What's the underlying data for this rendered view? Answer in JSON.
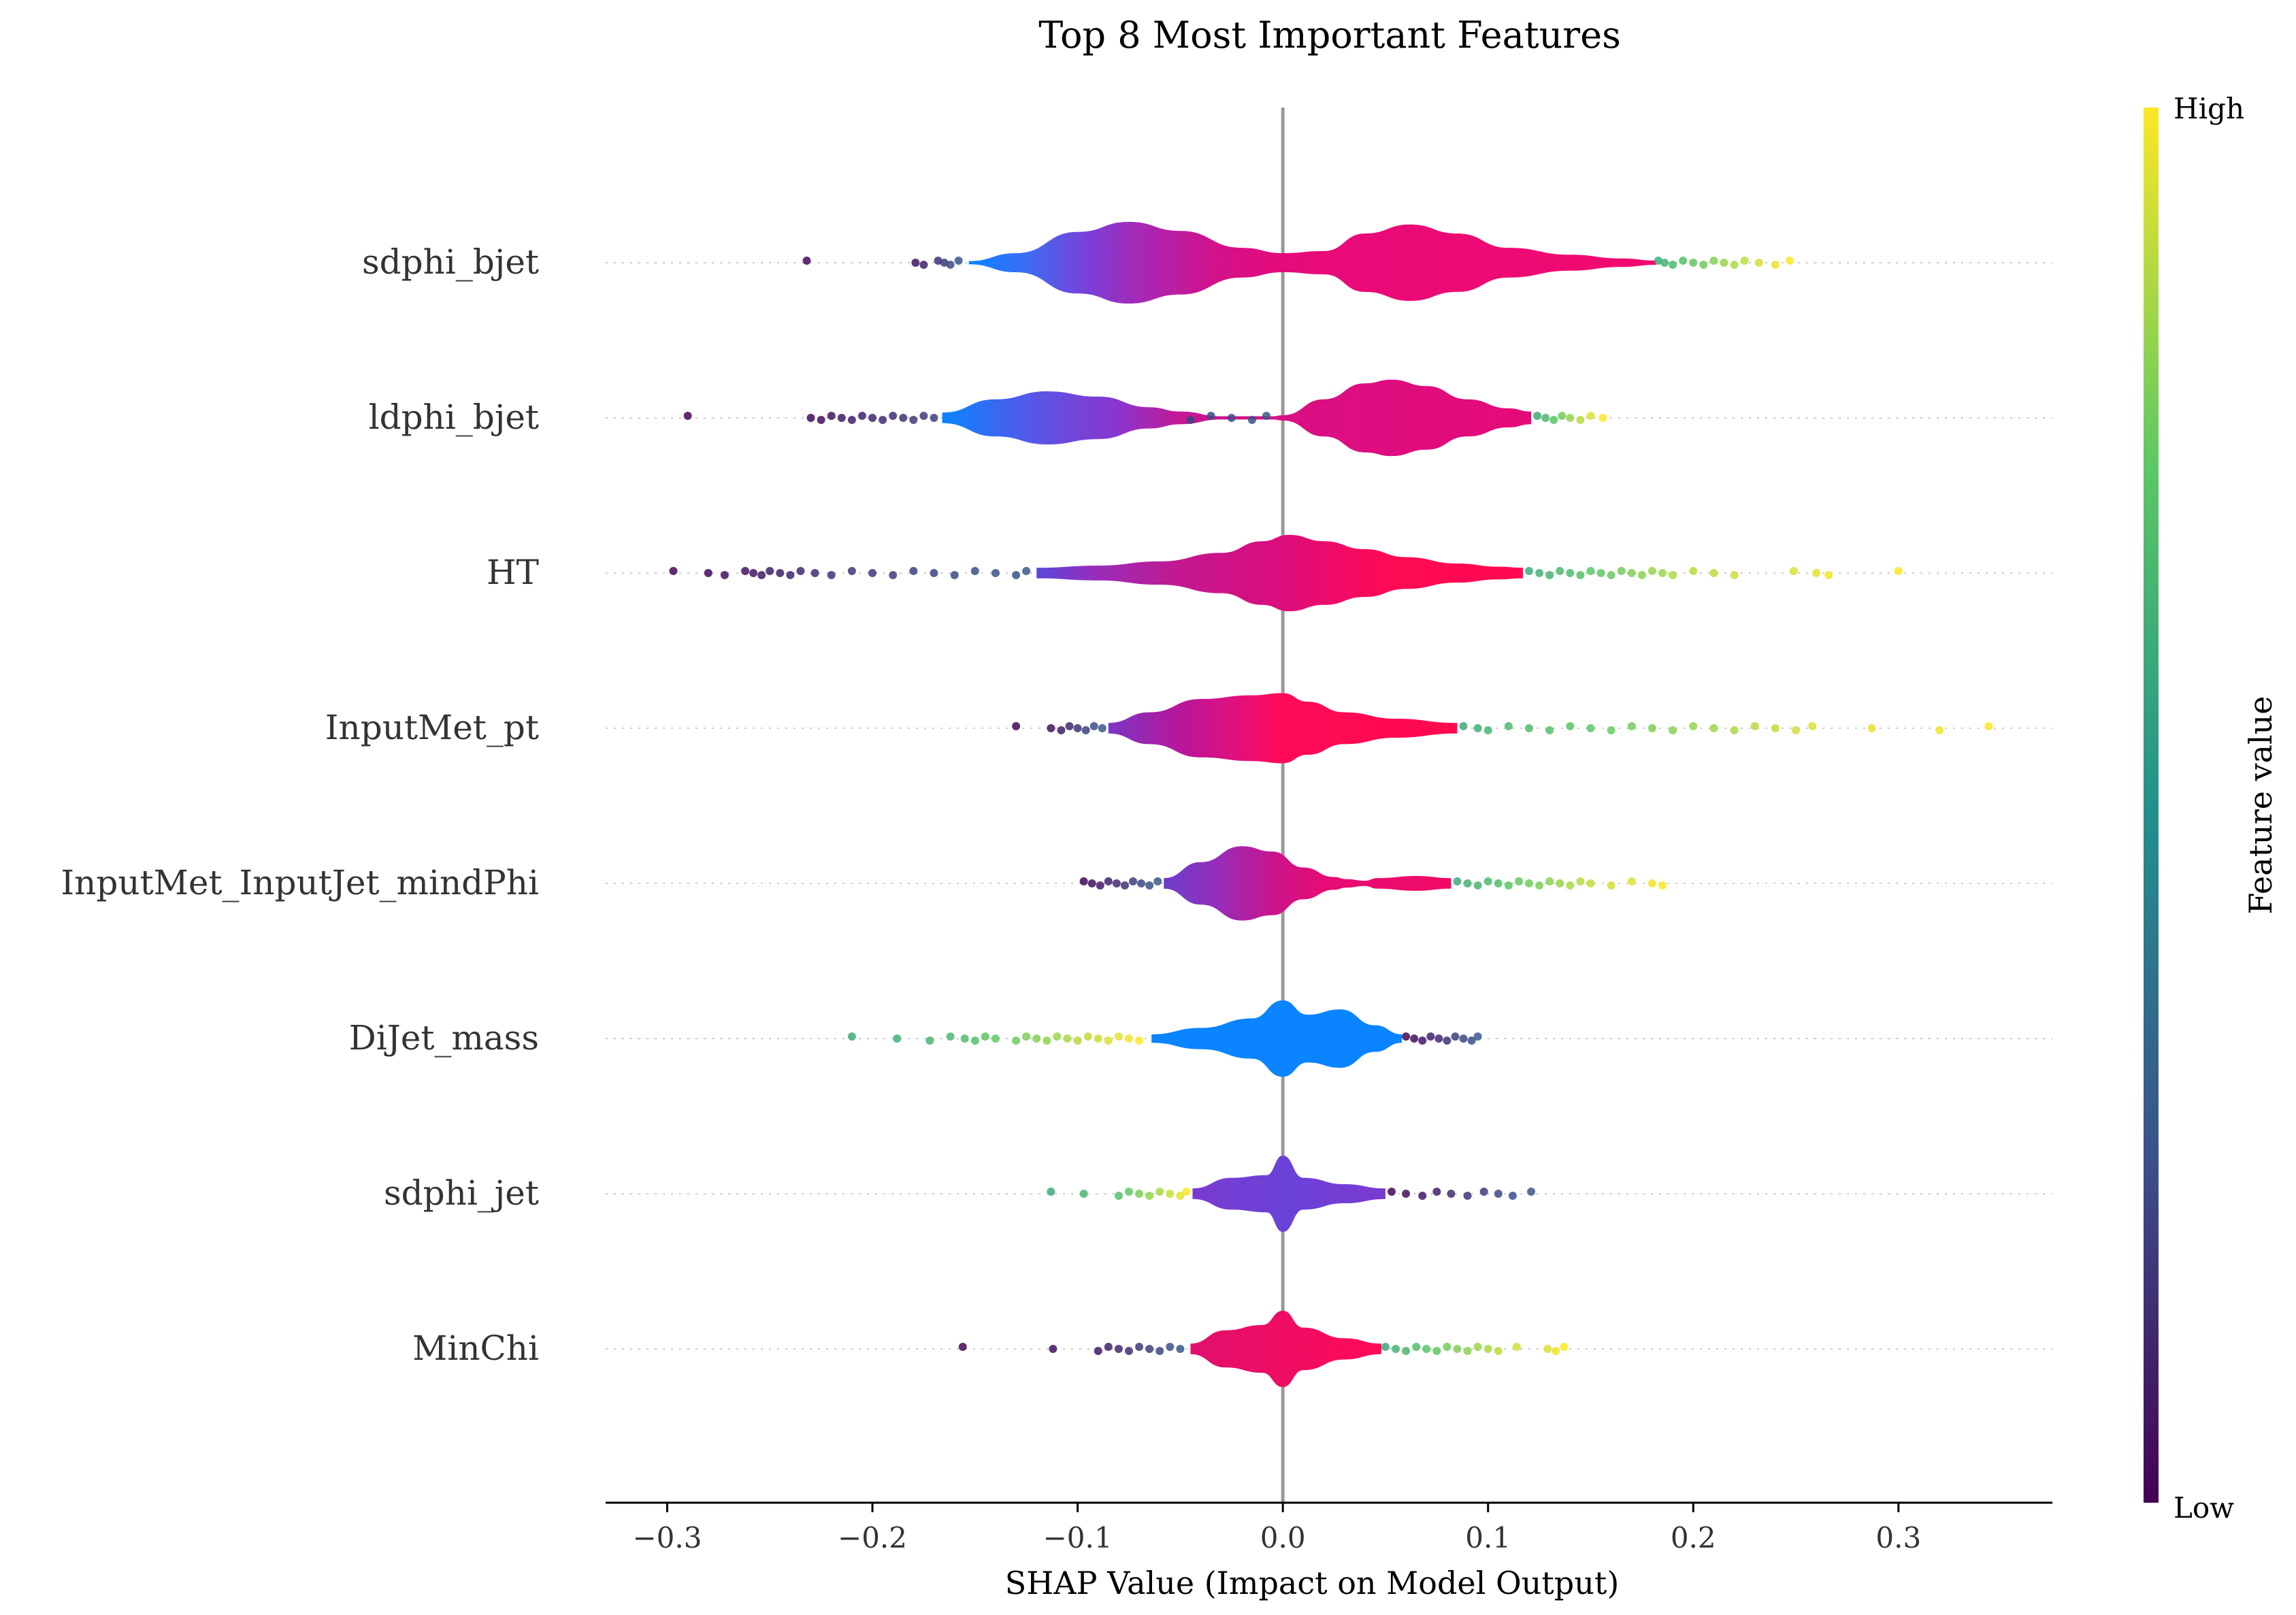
{
  "chart_data": {
    "type": "violin",
    "title": "Top 8 Most Important Features",
    "xlabel": "SHAP Value (Impact on Model Output)",
    "ylabel": "",
    "xlim": [
      -0.33,
      0.375
    ],
    "xticks": [
      {
        "value": -0.3,
        "label": "−0.3"
      },
      {
        "value": -0.2,
        "label": "−0.2"
      },
      {
        "value": -0.1,
        "label": "−0.1"
      },
      {
        "value": 0.0,
        "label": "0.0"
      },
      {
        "value": 0.1,
        "label": "0.1"
      },
      {
        "value": 0.2,
        "label": "0.2"
      },
      {
        "value": 0.3,
        "label": "0.3"
      }
    ],
    "zero_line": true,
    "row_gridlines": "dotted",
    "colorbar": {
      "label": "Feature value",
      "high_label": "High",
      "low_label": "Low",
      "stops": [
        "#440154",
        "#3b528b",
        "#21918c",
        "#5ec962",
        "#fde725"
      ]
    },
    "features": [
      {
        "name": "sdphi_bjet",
        "body_range": [
          -0.153,
          0.182
        ],
        "body_colors": [
          {
            "x": -0.153,
            "c": "#0a84ff"
          },
          {
            "x": -0.125,
            "c": "#3c6df4"
          },
          {
            "x": -0.095,
            "c": "#7a3fd8"
          },
          {
            "x": -0.07,
            "c": "#a628b6"
          },
          {
            "x": -0.035,
            "c": "#d0128c"
          },
          {
            "x": 0.0,
            "c": "#e60a7a"
          },
          {
            "x": 0.182,
            "c": "#f20a6e"
          }
        ],
        "density": [
          {
            "x": -0.153,
            "w": 0.03
          },
          {
            "x": -0.13,
            "w": 0.18
          },
          {
            "x": -0.1,
            "w": 0.58
          },
          {
            "x": -0.075,
            "w": 0.77
          },
          {
            "x": -0.05,
            "w": 0.6
          },
          {
            "x": -0.02,
            "w": 0.28
          },
          {
            "x": 0.0,
            "w": 0.18
          },
          {
            "x": 0.02,
            "w": 0.22
          },
          {
            "x": 0.04,
            "w": 0.55
          },
          {
            "x": 0.062,
            "w": 0.72
          },
          {
            "x": 0.085,
            "w": 0.55
          },
          {
            "x": 0.11,
            "w": 0.28
          },
          {
            "x": 0.14,
            "w": 0.15
          },
          {
            "x": 0.165,
            "w": 0.08
          },
          {
            "x": 0.182,
            "w": 0.04
          }
        ],
        "points_low": [
          -0.232,
          -0.179,
          -0.175,
          -0.168,
          -0.165,
          -0.162,
          -0.158
        ],
        "points_high": [
          0.183,
          0.186,
          0.19,
          0.195,
          0.2,
          0.205,
          0.21,
          0.215,
          0.22,
          0.225,
          0.232,
          0.24,
          0.247
        ]
      },
      {
        "name": "ldphi_bjet",
        "body_range": [
          -0.166,
          0.121
        ],
        "gap": [
          -0.05,
          0.0
        ],
        "body_colors": [
          {
            "x": -0.166,
            "c": "#0a84ff"
          },
          {
            "x": -0.12,
            "c": "#5a55e6"
          },
          {
            "x": -0.08,
            "c": "#8a35cc"
          },
          {
            "x": -0.05,
            "c": "#c41896"
          },
          {
            "x": 0.0,
            "c": "#d80f84"
          },
          {
            "x": 0.121,
            "c": "#e60a78"
          }
        ],
        "density": [
          {
            "x": -0.166,
            "w": 0.1
          },
          {
            "x": -0.14,
            "w": 0.35
          },
          {
            "x": -0.115,
            "w": 0.5
          },
          {
            "x": -0.09,
            "w": 0.4
          },
          {
            "x": -0.065,
            "w": 0.2
          },
          {
            "x": -0.05,
            "w": 0.12
          },
          {
            "x": -0.03,
            "w": 0.03
          },
          {
            "x": -0.005,
            "w": 0.03
          },
          {
            "x": 0.0,
            "w": 0.05
          },
          {
            "x": 0.02,
            "w": 0.35
          },
          {
            "x": 0.04,
            "w": 0.65
          },
          {
            "x": 0.053,
            "w": 0.72
          },
          {
            "x": 0.07,
            "w": 0.6
          },
          {
            "x": 0.09,
            "w": 0.35
          },
          {
            "x": 0.11,
            "w": 0.18
          },
          {
            "x": 0.121,
            "w": 0.12
          }
        ],
        "points_low": [
          -0.29,
          -0.23,
          -0.225,
          -0.22,
          -0.215,
          -0.21,
          -0.205,
          -0.2,
          -0.195,
          -0.19,
          -0.185,
          -0.18,
          -0.175,
          -0.17,
          -0.045,
          -0.035,
          -0.025,
          -0.015,
          -0.008
        ],
        "points_high": [
          0.124,
          0.128,
          0.132,
          0.136,
          0.14,
          0.145,
          0.15,
          0.156
        ]
      },
      {
        "name": "HT",
        "body_range": [
          -0.12,
          0.117
        ],
        "body_colors": [
          {
            "x": -0.12,
            "c": "#5a48d8"
          },
          {
            "x": -0.09,
            "c": "#9a2cba"
          },
          {
            "x": -0.05,
            "c": "#c2188e"
          },
          {
            "x": 0.0,
            "c": "#dc0c7c"
          },
          {
            "x": 0.05,
            "c": "#ff0a55"
          },
          {
            "x": 0.117,
            "c": "#ff0a50"
          }
        ],
        "density": [
          {
            "x": -0.12,
            "w": 0.1
          },
          {
            "x": -0.09,
            "w": 0.14
          },
          {
            "x": -0.06,
            "w": 0.22
          },
          {
            "x": -0.03,
            "w": 0.38
          },
          {
            "x": -0.01,
            "w": 0.6
          },
          {
            "x": 0.003,
            "w": 0.72
          },
          {
            "x": 0.02,
            "w": 0.6
          },
          {
            "x": 0.04,
            "w": 0.45
          },
          {
            "x": 0.06,
            "w": 0.3
          },
          {
            "x": 0.085,
            "w": 0.18
          },
          {
            "x": 0.105,
            "w": 0.12
          },
          {
            "x": 0.117,
            "w": 0.1
          }
        ],
        "points_low": [
          -0.297,
          -0.28,
          -0.272,
          -0.262,
          -0.258,
          -0.254,
          -0.25,
          -0.245,
          -0.24,
          -0.235,
          -0.228,
          -0.22,
          -0.21,
          -0.2,
          -0.19,
          -0.18,
          -0.17,
          -0.16,
          -0.15,
          -0.14,
          -0.13,
          -0.125
        ],
        "points_high": [
          0.12,
          0.125,
          0.13,
          0.135,
          0.14,
          0.145,
          0.15,
          0.155,
          0.16,
          0.165,
          0.17,
          0.175,
          0.18,
          0.185,
          0.19,
          0.2,
          0.21,
          0.22,
          0.249,
          0.26,
          0.266,
          0.3
        ]
      },
      {
        "name": "InputMet_pt",
        "body_range": [
          -0.085,
          0.085
        ],
        "body_colors": [
          {
            "x": -0.085,
            "c": "#7a36c4"
          },
          {
            "x": -0.05,
            "c": "#b8169a"
          },
          {
            "x": -0.02,
            "c": "#e60f7a"
          },
          {
            "x": 0.0,
            "c": "#ff0a58"
          },
          {
            "x": 0.085,
            "c": "#ff0a4e"
          }
        ],
        "density": [
          {
            "x": -0.085,
            "w": 0.1
          },
          {
            "x": -0.065,
            "w": 0.3
          },
          {
            "x": -0.04,
            "w": 0.55
          },
          {
            "x": -0.015,
            "w": 0.62
          },
          {
            "x": 0.0,
            "w": 0.66
          },
          {
            "x": 0.012,
            "w": 0.5
          },
          {
            "x": 0.03,
            "w": 0.3
          },
          {
            "x": 0.055,
            "w": 0.18
          },
          {
            "x": 0.085,
            "w": 0.1
          }
        ],
        "points_low": [
          -0.13,
          -0.113,
          -0.108,
          -0.104,
          -0.1,
          -0.096,
          -0.092,
          -0.088
        ],
        "points_high": [
          0.088,
          0.095,
          0.1,
          0.11,
          0.12,
          0.13,
          0.14,
          0.15,
          0.16,
          0.17,
          0.18,
          0.19,
          0.2,
          0.21,
          0.22,
          0.23,
          0.24,
          0.25,
          0.258,
          0.287,
          0.32,
          0.344
        ]
      },
      {
        "name": "InputMet_InputJet_mindPhi",
        "body_range": [
          -0.058,
          0.082
        ],
        "gap": [
          0.031,
          0.046
        ],
        "body_colors": [
          {
            "x": -0.058,
            "c": "#6a3ecc"
          },
          {
            "x": -0.03,
            "c": "#9a2cb8"
          },
          {
            "x": -0.005,
            "c": "#c8148c"
          },
          {
            "x": 0.02,
            "c": "#e60c74"
          },
          {
            "x": 0.082,
            "c": "#f00a66"
          }
        ],
        "density": [
          {
            "x": -0.058,
            "w": 0.1
          },
          {
            "x": -0.04,
            "w": 0.4
          },
          {
            "x": -0.02,
            "w": 0.7
          },
          {
            "x": -0.005,
            "w": 0.6
          },
          {
            "x": 0.01,
            "w": 0.3
          },
          {
            "x": 0.025,
            "w": 0.12
          },
          {
            "x": 0.031,
            "w": 0.08
          },
          {
            "x": 0.04,
            "w": 0.05
          },
          {
            "x": 0.046,
            "w": 0.1
          },
          {
            "x": 0.065,
            "w": 0.14
          },
          {
            "x": 0.082,
            "w": 0.1
          }
        ],
        "points_low": [
          -0.097,
          -0.093,
          -0.089,
          -0.085,
          -0.081,
          -0.077,
          -0.073,
          -0.069,
          -0.065,
          -0.061
        ],
        "points_high": [
          0.085,
          0.09,
          0.095,
          0.1,
          0.105,
          0.11,
          0.115,
          0.12,
          0.125,
          0.13,
          0.135,
          0.14,
          0.145,
          0.15,
          0.16,
          0.17,
          0.18,
          0.185
        ]
      },
      {
        "name": "DiJet_mass",
        "body_range": [
          -0.064,
          0.058
        ],
        "body_colors": [
          {
            "x": -0.064,
            "c": "#0a84ff"
          },
          {
            "x": 0.058,
            "c": "#0a84ff"
          }
        ],
        "density": [
          {
            "x": -0.064,
            "w": 0.08
          },
          {
            "x": -0.04,
            "w": 0.2
          },
          {
            "x": -0.015,
            "w": 0.38
          },
          {
            "x": 0.0,
            "w": 0.72
          },
          {
            "x": 0.012,
            "w": 0.45
          },
          {
            "x": 0.028,
            "w": 0.55
          },
          {
            "x": 0.045,
            "w": 0.25
          },
          {
            "x": 0.058,
            "w": 0.08
          }
        ],
        "points_low": [
          0.06,
          0.064,
          0.068,
          0.072,
          0.076,
          0.08,
          0.084,
          0.088,
          0.092,
          0.095
        ],
        "points_high": [
          -0.21,
          -0.188,
          -0.172,
          -0.162,
          -0.155,
          -0.15,
          -0.145,
          -0.14,
          -0.13,
          -0.125,
          -0.12,
          -0.115,
          -0.11,
          -0.105,
          -0.1,
          -0.095,
          -0.09,
          -0.085,
          -0.08,
          -0.075,
          -0.07
        ]
      },
      {
        "name": "sdphi_jet",
        "body_range": [
          -0.044,
          0.05
        ],
        "body_colors": [
          {
            "x": -0.044,
            "c": "#7a3ad0"
          },
          {
            "x": 0.0,
            "c": "#6a42d8"
          },
          {
            "x": 0.05,
            "c": "#7a3ad0"
          }
        ],
        "density": [
          {
            "x": -0.044,
            "w": 0.1
          },
          {
            "x": -0.025,
            "w": 0.3
          },
          {
            "x": -0.008,
            "w": 0.35
          },
          {
            "x": 0.0,
            "w": 0.72
          },
          {
            "x": 0.01,
            "w": 0.3
          },
          {
            "x": 0.03,
            "w": 0.18
          },
          {
            "x": 0.05,
            "w": 0.1
          }
        ],
        "points_low": [
          0.053,
          0.06,
          0.068,
          0.075,
          0.082,
          0.09,
          0.098,
          0.105,
          0.112,
          0.121
        ],
        "points_high": [
          -0.113,
          -0.097,
          -0.08,
          -0.075,
          -0.07,
          -0.065,
          -0.06,
          -0.055,
          -0.05,
          -0.047
        ]
      },
      {
        "name": "MinChi",
        "body_range": [
          -0.045,
          0.048
        ],
        "body_colors": [
          {
            "x": -0.045,
            "c": "#e0106e"
          },
          {
            "x": 0.048,
            "c": "#ff0a58"
          }
        ],
        "density": [
          {
            "x": -0.045,
            "w": 0.1
          },
          {
            "x": -0.028,
            "w": 0.35
          },
          {
            "x": -0.01,
            "w": 0.45
          },
          {
            "x": 0.0,
            "w": 0.72
          },
          {
            "x": 0.01,
            "w": 0.4
          },
          {
            "x": 0.03,
            "w": 0.2
          },
          {
            "x": 0.048,
            "w": 0.1
          }
        ],
        "points_low": [
          -0.156,
          -0.112,
          -0.09,
          -0.085,
          -0.08,
          -0.075,
          -0.07,
          -0.065,
          -0.06,
          -0.055,
          -0.05
        ],
        "points_high": [
          0.05,
          0.055,
          0.06,
          0.065,
          0.07,
          0.075,
          0.08,
          0.085,
          0.09,
          0.095,
          0.1,
          0.105,
          0.114,
          0.129,
          0.133,
          0.137
        ]
      }
    ]
  }
}
